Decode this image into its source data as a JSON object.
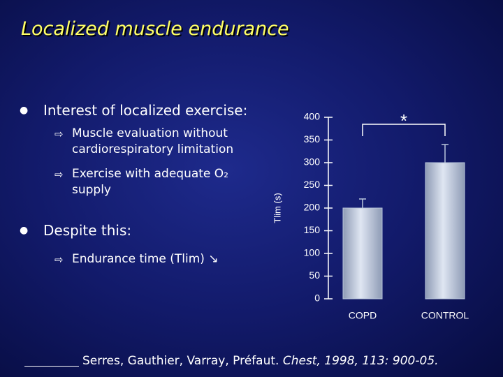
{
  "slide": {
    "title": "Localized muscle endurance",
    "bullets": [
      {
        "text": "Interest of localized exercise:",
        "sub": [
          {
            "lines": [
              "Muscle evaluation without",
              "cardiorespiratory limitation"
            ]
          },
          {
            "lines": [
              "Exercise with adequate O₂",
              "supply"
            ]
          }
        ]
      },
      {
        "text": "Despite this:",
        "sub": [
          {
            "lines": [
              "Endurance time (Tlim) ↘"
            ]
          }
        ]
      }
    ],
    "reference": {
      "authors": "Serres, Gauthier, Varray, Préfaut.",
      "journal": "Chest, 1998, 113: 900-05."
    }
  },
  "chart_data": {
    "type": "bar",
    "ylabel": "Tlim (s)",
    "categories": [
      "COPD",
      "CONTROL"
    ],
    "values": [
      200,
      300
    ],
    "errors": [
      20,
      40
    ],
    "color": "#b9c6dc",
    "ylim": [
      0,
      400
    ],
    "yticks": [
      0,
      50,
      100,
      150,
      200,
      250,
      300,
      350,
      400
    ],
    "annotation": "*"
  }
}
